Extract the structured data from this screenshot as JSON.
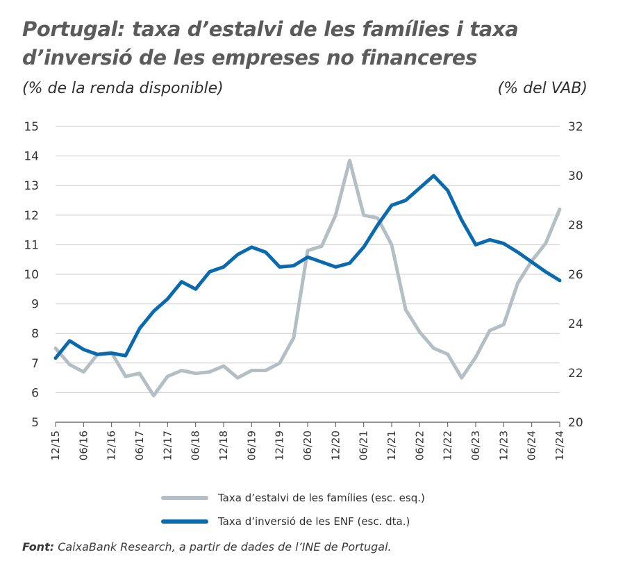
{
  "title": "Portugal: taxa d’estalvi de les famílies i taxa d’inversió de les empreses no financeres",
  "left_unit": "(% de la renda disponible)",
  "right_unit": "(% del VAB)",
  "source_label": "Font:",
  "source_text": " CaixaBank Research, a partir de dades de l’INE de Portugal.",
  "colors": {
    "savings": "#b3bfc4",
    "investment": "#0a6aad",
    "grid": "#c9c9c9",
    "axis": "#555555"
  },
  "chart_data": {
    "type": "line",
    "x": [
      "12/15",
      "03/16",
      "06/16",
      "09/16",
      "12/16",
      "03/17",
      "06/17",
      "09/17",
      "12/17",
      "03/18",
      "06/18",
      "09/18",
      "12/18",
      "03/19",
      "06/19",
      "09/19",
      "12/19",
      "03/20",
      "06/20",
      "09/20",
      "12/20",
      "03/21",
      "06/21",
      "09/21",
      "12/21",
      "03/22",
      "06/22",
      "09/22",
      "12/22",
      "03/23",
      "06/23",
      "09/23",
      "12/23",
      "03/24",
      "06/24",
      "09/24",
      "12/24"
    ],
    "x_tick_labels": [
      "12/15",
      "06/16",
      "12/16",
      "06/17",
      "12/17",
      "06/18",
      "12/18",
      "06/19",
      "12/19",
      "06/20",
      "12/20",
      "06/21",
      "12/21",
      "06/22",
      "12/22",
      "06/23",
      "12/23",
      "06/24",
      "12/24"
    ],
    "y_left": {
      "ylim": [
        5,
        15
      ],
      "ticks": [
        5,
        6,
        7,
        8,
        9,
        10,
        11,
        12,
        13,
        14,
        15
      ]
    },
    "y_right": {
      "ylim": [
        20,
        32
      ],
      "ticks": [
        20,
        22,
        24,
        26,
        28,
        30,
        32
      ]
    },
    "grid": true,
    "legend_position": "bottom",
    "series": [
      {
        "name": "Taxa d’estalvi de les famílies (esc. esq.)",
        "axis": "left",
        "values": [
          7.5,
          6.95,
          6.7,
          7.3,
          7.35,
          6.55,
          6.65,
          5.9,
          6.55,
          6.75,
          6.65,
          6.7,
          6.9,
          6.5,
          6.75,
          6.75,
          7.0,
          7.85,
          10.8,
          10.95,
          12.0,
          13.85,
          12.0,
          11.9,
          11.0,
          8.8,
          8.05,
          7.5,
          7.3,
          6.5,
          7.2,
          8.1,
          8.3,
          9.7,
          10.45,
          11.05,
          12.2
        ]
      },
      {
        "name": "Taxa d’inversió de les ENF (esc. dta.)",
        "axis": "right",
        "values": [
          22.6,
          23.3,
          22.95,
          22.75,
          22.8,
          22.7,
          23.8,
          24.5,
          25.0,
          25.7,
          25.4,
          26.1,
          26.3,
          26.8,
          27.1,
          26.9,
          26.3,
          26.35,
          26.7,
          26.5,
          26.3,
          26.45,
          27.1,
          28.0,
          28.8,
          29.0,
          29.5,
          30.0,
          29.4,
          28.2,
          27.2,
          27.4,
          27.25,
          26.9,
          26.5,
          26.1,
          25.75
        ]
      }
    ]
  }
}
